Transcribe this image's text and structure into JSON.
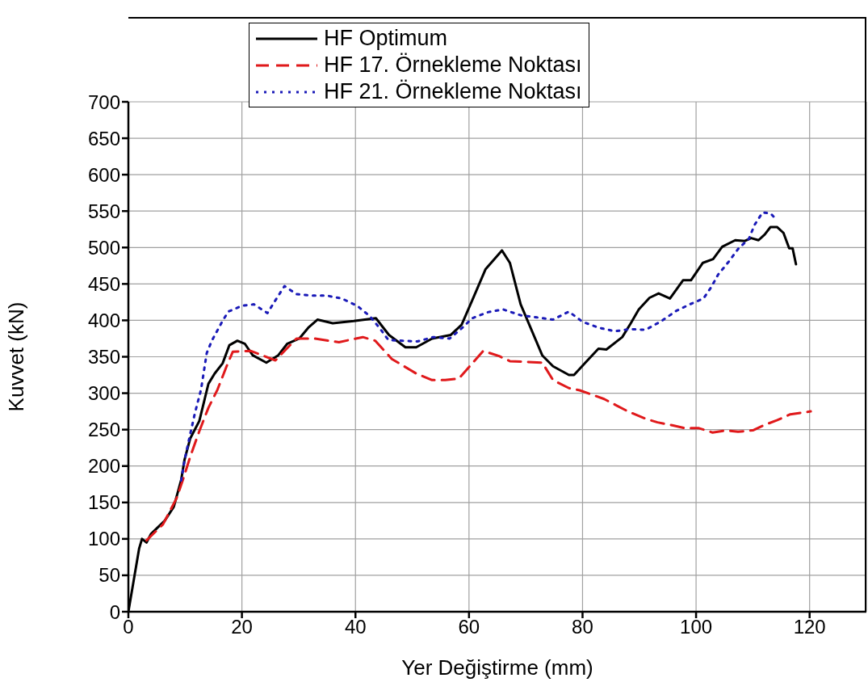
{
  "chart_data": {
    "type": "line",
    "xlabel": "Yer Değiştirme (mm)",
    "ylabel": "Kuvvet (kN)",
    "xlim": [
      0,
      130
    ],
    "xticks": [
      0,
      20,
      40,
      60,
      80,
      100,
      120
    ],
    "ylim": [
      0,
      700
    ],
    "yticks": [
      0,
      50,
      100,
      150,
      200,
      250,
      300,
      350,
      400,
      450,
      500,
      550,
      600,
      650,
      700
    ],
    "grid": true,
    "legend": "top",
    "series": [
      {
        "name": "HF Optimum",
        "color": "#000000",
        "line_style": "solid",
        "x": [
          0,
          1.9,
          2.4,
          3.2,
          4.0,
          6.4,
          8.0,
          9.3,
          9.9,
          10.9,
          12.5,
          14.1,
          15.2,
          16.6,
          17.8,
          19.2,
          20.5,
          21.9,
          24.3,
          26.4,
          28.0,
          30.1,
          31.7,
          33.3,
          36.0,
          39.7,
          43.6,
          45.9,
          48.8,
          50.7,
          53.5,
          56.8,
          58.7,
          60.6,
          62.9,
          65.8,
          67.2,
          69.1,
          72.9,
          74.8,
          77.6,
          78.5,
          80.5,
          82.8,
          84.2,
          87.0,
          88.5,
          89.9,
          91.8,
          93.4,
          95.4,
          97.7,
          99.1,
          101.2,
          103.0,
          104.6,
          106.9,
          108.6,
          109.7,
          111.0,
          112.1,
          113.1,
          114.3,
          115.4,
          116.4,
          117.0,
          117.6
        ],
        "values": [
          0,
          87,
          100,
          95,
          107,
          125,
          144,
          181,
          209,
          238,
          262,
          313,
          327,
          341,
          366,
          372,
          368,
          352,
          342,
          352,
          368,
          375,
          390,
          401,
          396,
          399,
          403,
          380,
          363,
          363,
          375,
          380,
          394,
          428,
          470,
          496,
          479,
          422,
          352,
          337,
          325,
          325,
          342,
          361,
          360,
          377,
          396,
          415,
          431,
          437,
          430,
          455,
          455,
          479,
          484,
          501,
          510,
          509,
          513,
          510,
          518,
          528,
          528,
          520,
          499,
          499,
          477
        ]
      },
      {
        "name": "HF 17. Örnekleme Noktası",
        "color": "#e0191b",
        "line_style": "dashed",
        "x": [
          3.2,
          6.1,
          8.5,
          9.6,
          10.9,
          12.5,
          14.1,
          15.7,
          17.3,
          18.4,
          21.6,
          25.9,
          29.6,
          32.8,
          37.1,
          41.3,
          43.5,
          46.4,
          50.7,
          53.5,
          55.8,
          58.2,
          62.5,
          65.3,
          67.2,
          72.9,
          74.8,
          77.6,
          79.5,
          83.8,
          88.0,
          91.1,
          93.2,
          95.8,
          98.0,
          100.5,
          102.9,
          105.3,
          107.4,
          110.0,
          111.9,
          114.3,
          116.6,
          120.2
        ],
        "values": [
          98,
          120,
          156,
          181,
          213,
          248,
          280,
          305,
          337,
          357,
          358,
          345,
          375,
          375,
          370,
          377,
          372,
          347,
          327,
          318,
          318,
          320,
          358,
          351,
          344,
          342,
          318,
          307,
          304,
          292,
          275,
          265,
          260,
          256,
          252,
          252,
          246,
          249,
          247,
          249,
          256,
          263,
          271,
          275
        ]
      },
      {
        "name": "HF 21. Örnekleme Noktası",
        "color": "#1a1ab8",
        "line_style": "dotted",
        "x": [
          9.3,
          9.9,
          10.7,
          11.7,
          12.8,
          13.8,
          14.7,
          16.5,
          17.6,
          20.0,
          22.1,
          24.5,
          26.1,
          27.5,
          29.6,
          32.3,
          34.9,
          37.6,
          40.3,
          42.5,
          44.3,
          45.8,
          50.9,
          53.7,
          56.6,
          58.7,
          60.6,
          63.2,
          66.0,
          69.1,
          72.0,
          74.8,
          77.6,
          80.0,
          82.8,
          85.7,
          88.3,
          91.1,
          93.9,
          96.5,
          98.9,
          101.3,
          102.7,
          103.9,
          105.8,
          107.4,
          109.3,
          110.3,
          111.7,
          113.1,
          114.3
        ],
        "values": [
          180,
          208,
          237,
          272,
          305,
          355,
          372,
          398,
          412,
          420,
          422,
          410,
          430,
          447,
          436,
          434,
          434,
          430,
          420,
          406,
          389,
          373,
          371,
          377,
          375,
          389,
          403,
          411,
          415,
          407,
          404,
          401,
          412,
          398,
          390,
          385,
          388,
          387,
          399,
          413,
          422,
          430,
          446,
          463,
          481,
          498,
          512,
          531,
          548,
          547,
          537
        ]
      }
    ]
  }
}
